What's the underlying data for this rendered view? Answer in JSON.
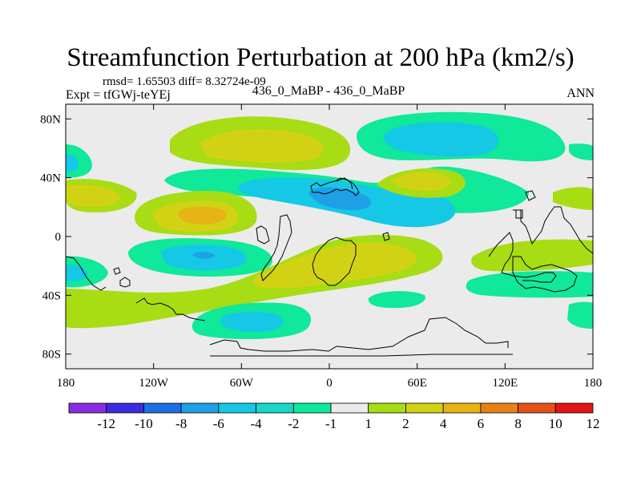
{
  "header": {
    "title": "Streamfunction Perturbation at 200 hPa (km2/s)",
    "stats": "rmsd= 1.65503 diff= 8.32724e-09",
    "expt": "Expt = tfGWj-teYEj",
    "case": "436_0_MaBP - 436_0_MaBP",
    "season": "ANN"
  },
  "chart_data": {
    "type": "heatmap",
    "title": "Streamfunction Perturbation at 200 hPa (km2/s)",
    "xlabel": "",
    "ylabel": "",
    "x_ticks": [
      "180",
      "120W",
      "60W",
      "0",
      "60E",
      "120E",
      "180"
    ],
    "x_tick_values": [
      -180,
      -120,
      -60,
      0,
      60,
      120,
      180
    ],
    "y_ticks": [
      "80N",
      "40N",
      "0",
      "40S",
      "80S"
    ],
    "y_tick_values": [
      80,
      40,
      0,
      -40,
      -80
    ],
    "xlim": [
      -180,
      180
    ],
    "ylim": [
      -90,
      90
    ],
    "contour_levels": [
      -12,
      -10,
      -8,
      -6,
      -4,
      -2,
      -1,
      1,
      2,
      4,
      6,
      8,
      10,
      12
    ],
    "colorbar_labels": [
      "-12",
      "-10",
      "-8",
      "-6",
      "-4",
      "-2",
      "-1",
      "1",
      "2",
      "4",
      "6",
      "8",
      "10",
      "12"
    ],
    "colorbar_colors": [
      "#8a2be2",
      "#3a2be0",
      "#1e6ee6",
      "#1ea0e6",
      "#14c8e6",
      "#18d8c8",
      "#10e89a",
      "#ebebeb",
      "#a8dc14",
      "#d2d214",
      "#e6b414",
      "#e68214",
      "#e65014",
      "#e61414"
    ],
    "features": [
      {
        "name": "positive-anomaly-nh-pacific",
        "lon": -120,
        "lat": 53,
        "value": 4
      },
      {
        "name": "positive-anomaly-tropical-pacific",
        "lon": -85,
        "lat": 15,
        "value": 6
      },
      {
        "name": "negative-anomaly-north-atlantic",
        "lon": 15,
        "lat": 33,
        "value": -6
      },
      {
        "name": "negative-anomaly-nh-asia",
        "lon": 85,
        "lat": 60,
        "value": -4
      },
      {
        "name": "negative-anomaly-sh-pacific",
        "lon": -85,
        "lat": -12,
        "value": -6
      },
      {
        "name": "positive-anomaly-south-atlantic",
        "lon": 15,
        "lat": -20,
        "value": 4
      },
      {
        "name": "negative-anomaly-southern-ocean",
        "lon": -55,
        "lat": -55,
        "value": -4
      },
      {
        "name": "positive-anomaly-west-pacific",
        "lon": -150,
        "lat": 28,
        "value": 4
      }
    ]
  }
}
